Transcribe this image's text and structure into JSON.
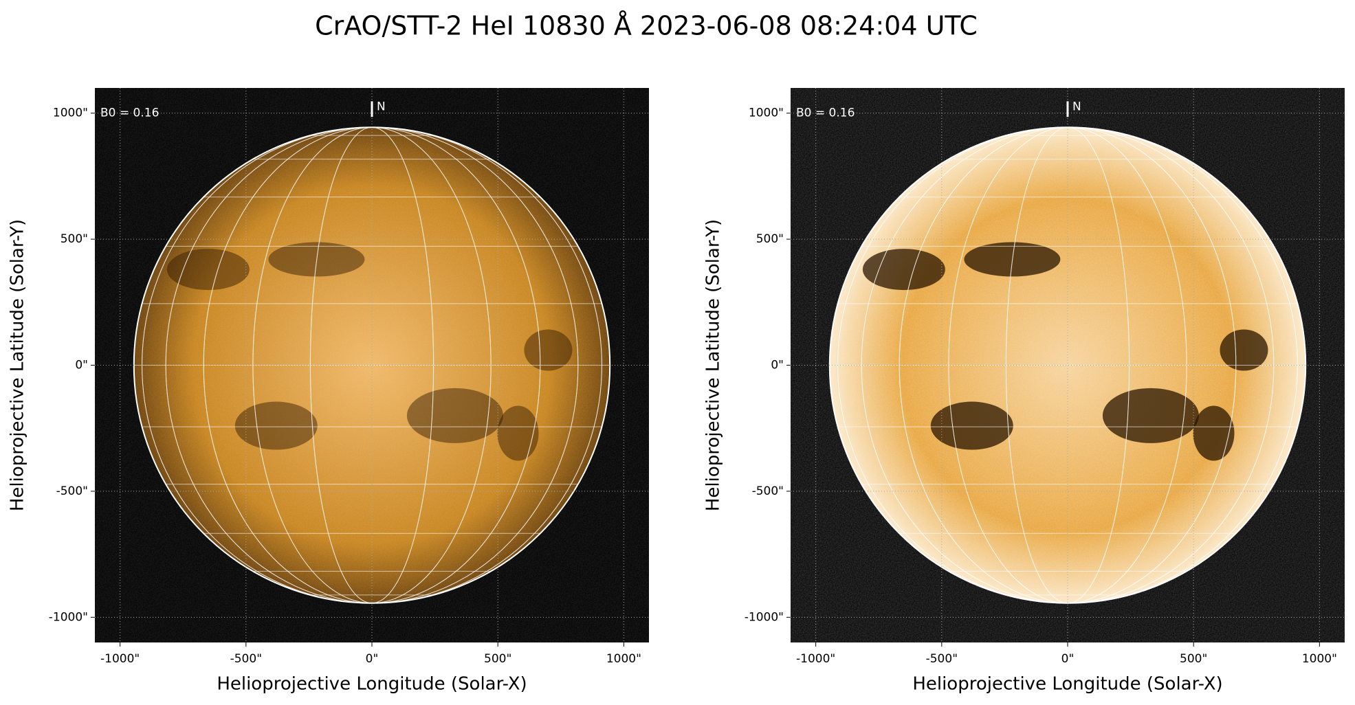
{
  "title": "CrAO/STT-2 HeI 10830 Å 2023-06-08 08:24:04 UTC",
  "chart_data": [
    {
      "type": "image",
      "xlabel": "Helioprojective Longitude (Solar-X)",
      "ylabel": "Helioprojective Latitude (Solar-Y)",
      "xlim": [
        -1100,
        1100
      ],
      "ylim": [
        -1100,
        1100
      ],
      "xticks": [
        {
          "value": -1000,
          "label": "-1000\""
        },
        {
          "value": -500,
          "label": "-500\""
        },
        {
          "value": 0,
          "label": "0\""
        },
        {
          "value": 500,
          "label": "500\""
        },
        {
          "value": 1000,
          "label": "1000\""
        }
      ],
      "yticks": [
        {
          "value": -1000,
          "label": "-1000\""
        },
        {
          "value": -500,
          "label": "-500\""
        },
        {
          "value": 0,
          "label": "0\""
        },
        {
          "value": 500,
          "label": "500\""
        },
        {
          "value": 1000,
          "label": "1000\""
        }
      ],
      "annotation": "B0 = 0.16",
      "north_label": "N",
      "disk_radius": 945,
      "disk_color": "#c8841c",
      "grid": true
    },
    {
      "type": "image",
      "xlabel": "Helioprojective Longitude (Solar-X)",
      "ylabel": "Helioprojective Latitude (Solar-Y)",
      "xlim": [
        -1100,
        1100
      ],
      "ylim": [
        -1100,
        1100
      ],
      "xticks": [
        {
          "value": -1000,
          "label": "-1000\""
        },
        {
          "value": -500,
          "label": "-500\""
        },
        {
          "value": 0,
          "label": "0\""
        },
        {
          "value": 500,
          "label": "500\""
        },
        {
          "value": 1000,
          "label": "1000\""
        }
      ],
      "yticks": [
        {
          "value": -1000,
          "label": "-1000\""
        },
        {
          "value": -500,
          "label": "-500\""
        },
        {
          "value": 0,
          "label": "0\""
        },
        {
          "value": 500,
          "label": "500\""
        },
        {
          "value": 1000,
          "label": "1000\""
        }
      ],
      "annotation": "B0 = 0.16",
      "north_label": "N",
      "disk_radius": 945,
      "disk_color": "#e8a43a",
      "grid": true
    }
  ]
}
